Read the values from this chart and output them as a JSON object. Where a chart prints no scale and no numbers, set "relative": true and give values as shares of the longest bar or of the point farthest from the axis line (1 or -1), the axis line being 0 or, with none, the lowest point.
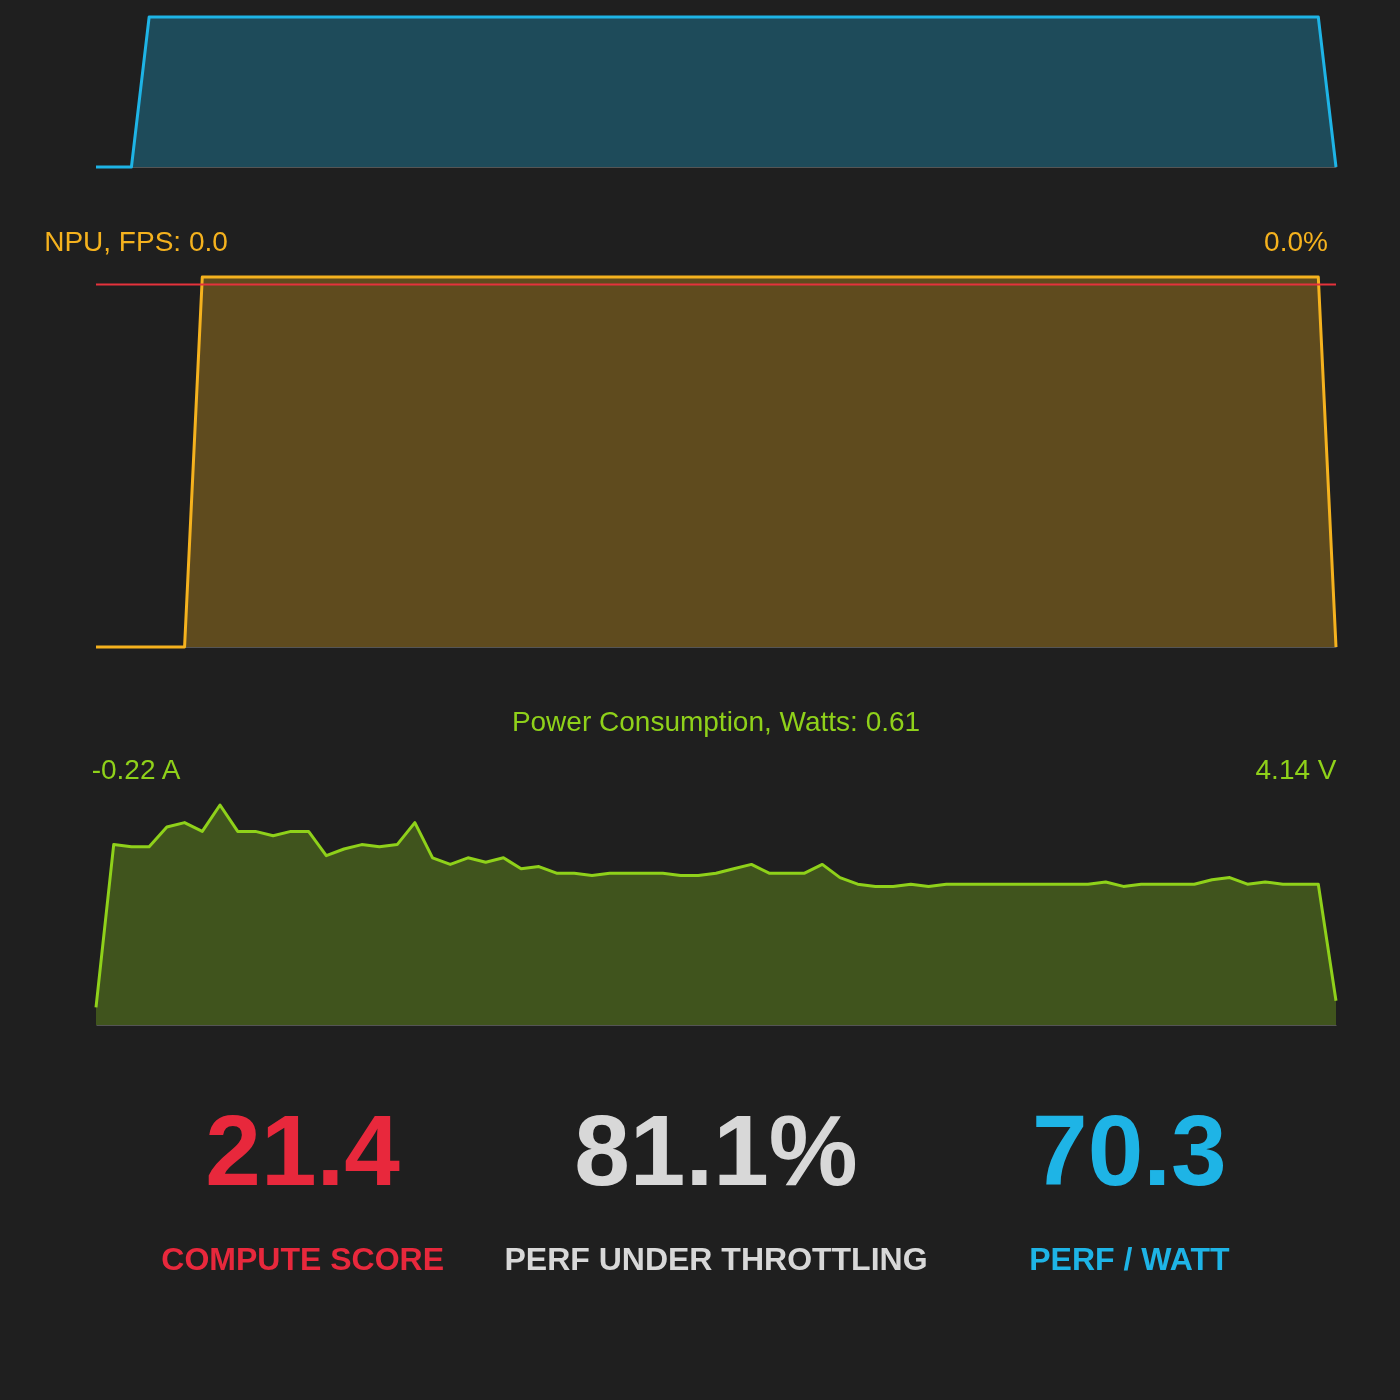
{
  "chart_data": [
    {
      "type": "area",
      "relative": true,
      "categories": [
        null,
        null,
        null,
        null,
        null,
        null,
        null,
        null,
        null,
        null,
        null,
        null,
        null,
        null,
        null,
        null,
        null,
        null,
        null,
        null,
        null,
        null,
        null,
        null,
        null,
        null,
        null,
        null,
        null,
        null,
        null,
        null,
        null,
        null,
        null,
        null,
        null,
        null,
        null,
        null,
        null,
        null,
        null,
        null,
        null,
        null,
        null,
        null,
        null,
        null,
        null,
        null,
        null,
        null,
        null,
        null,
        null,
        null,
        null,
        null,
        null,
        null,
        null,
        null,
        null,
        null,
        null,
        null,
        null,
        null,
        null
      ],
      "series": [
        {
          "color": "#1eb4e6",
          "values": [
            0,
            0,
            0,
            1,
            1,
            1,
            1,
            1,
            1,
            1,
            1,
            1,
            1,
            1,
            1,
            1,
            1,
            1,
            1,
            1,
            1,
            1,
            1,
            1,
            1,
            1,
            1,
            1,
            1,
            1,
            1,
            1,
            1,
            1,
            1,
            1,
            1,
            1,
            1,
            1,
            1,
            1,
            1,
            1,
            1,
            1,
            1,
            1,
            1,
            1,
            1,
            1,
            1,
            1,
            1,
            1,
            1,
            1,
            1,
            1,
            1,
            1,
            1,
            1,
            1,
            1,
            1,
            1,
            1,
            1,
            0
          ]
        }
      ]
    },
    {
      "type": "area",
      "relative": true,
      "annotations": [
        "NPU, FPS:  0.0",
        "0.0%"
      ],
      "ref_lines": [
        {
          "axis": "y",
          "value": 0.98,
          "color": "#e5323c"
        }
      ],
      "categories": [
        null,
        null,
        null,
        null,
        null,
        null,
        null,
        null,
        null,
        null,
        null,
        null,
        null,
        null,
        null,
        null,
        null,
        null,
        null,
        null,
        null,
        null,
        null,
        null,
        null,
        null,
        null,
        null,
        null,
        null,
        null,
        null,
        null,
        null,
        null,
        null,
        null,
        null,
        null,
        null,
        null,
        null,
        null,
        null,
        null,
        null,
        null,
        null,
        null,
        null,
        null,
        null,
        null,
        null,
        null,
        null,
        null,
        null,
        null,
        null,
        null,
        null,
        null,
        null,
        null,
        null,
        null,
        null,
        null,
        null,
        null
      ],
      "series": [
        {
          "color": "#f5b21e",
          "values": [
            0,
            0,
            0,
            0,
            0,
            0,
            1,
            1,
            1,
            1,
            1,
            1,
            1,
            1,
            1,
            1,
            1,
            1,
            1,
            1,
            1,
            1,
            1,
            1,
            1,
            1,
            1,
            1,
            1,
            1,
            1,
            1,
            1,
            1,
            1,
            1,
            1,
            1,
            1,
            1,
            1,
            1,
            1,
            1,
            1,
            1,
            1,
            1,
            1,
            1,
            1,
            1,
            1,
            1,
            1,
            1,
            1,
            1,
            1,
            1,
            1,
            1,
            1,
            1,
            1,
            1,
            1,
            1,
            1,
            1,
            0
          ]
        }
      ]
    },
    {
      "type": "area",
      "relative": true,
      "title": "Power Consumption, Watts:   0.61",
      "annotations": [
        "-0.22 A",
        "4.14 V"
      ],
      "categories": [
        null,
        null,
        null,
        null,
        null,
        null,
        null,
        null,
        null,
        null,
        null,
        null,
        null,
        null,
        null,
        null,
        null,
        null,
        null,
        null,
        null,
        null,
        null,
        null,
        null,
        null,
        null,
        null,
        null,
        null,
        null,
        null,
        null,
        null,
        null,
        null,
        null,
        null,
        null,
        null,
        null,
        null,
        null,
        null,
        null,
        null,
        null,
        null,
        null,
        null,
        null,
        null,
        null,
        null,
        null,
        null,
        null,
        null,
        null,
        null,
        null,
        null,
        null,
        null,
        null,
        null,
        null,
        null,
        null,
        null,
        null
      ],
      "series": [
        {
          "color": "#8fd11a",
          "values": [
            0.08,
            0.82,
            0.81,
            0.81,
            0.9,
            0.92,
            0.88,
            1,
            0.88,
            0.88,
            0.86,
            0.88,
            0.88,
            0.77,
            0.8,
            0.82,
            0.81,
            0.82,
            0.92,
            0.76,
            0.73,
            0.76,
            0.74,
            0.76,
            0.71,
            0.72,
            0.69,
            0.69,
            0.68,
            0.69,
            0.69,
            0.69,
            0.69,
            0.68,
            0.68,
            0.69,
            0.71,
            0.73,
            0.69,
            0.69,
            0.69,
            0.73,
            0.67,
            0.64,
            0.63,
            0.63,
            0.64,
            0.63,
            0.64,
            0.64,
            0.64,
            0.64,
            0.64,
            0.64,
            0.64,
            0.64,
            0.64,
            0.65,
            0.63,
            0.64,
            0.64,
            0.64,
            0.64,
            0.66,
            0.67,
            0.64,
            0.65,
            0.64,
            0.64,
            0.64,
            0.11
          ]
        }
      ]
    },
    {
      "type": "other",
      "annotations": [
        "21.4",
        "COMPUTE SCORE",
        "81.1%",
        "PERF UNDER THROTTLING",
        "70.3",
        "PERF / WATT"
      ],
      "colors": [
        "#e8283c",
        "#d8d8d8",
        "#1eb4e6"
      ]
    }
  ]
}
